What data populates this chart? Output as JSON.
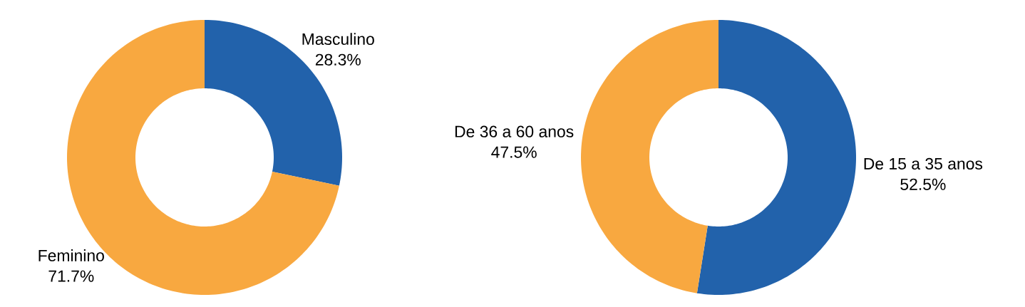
{
  "chart_data": [
    {
      "type": "donut",
      "categories": [
        "Masculino",
        "Feminino"
      ],
      "values": [
        28.3,
        71.7
      ],
      "colors": [
        "#2262ab",
        "#f8a840"
      ],
      "value_labels": [
        "28.3%",
        "71.7%"
      ]
    },
    {
      "type": "donut",
      "categories": [
        "De 15 a 35 anos",
        "De 36 a 60 anos"
      ],
      "values": [
        52.5,
        47.5
      ],
      "colors": [
        "#2262ab",
        "#f8a840"
      ],
      "value_labels": [
        "52.5%",
        "47.5%"
      ]
    }
  ]
}
